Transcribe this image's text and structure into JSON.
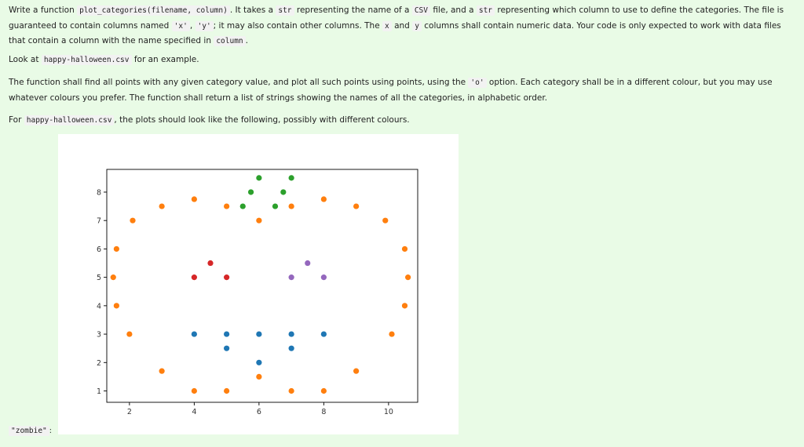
{
  "instructions": {
    "p1": {
      "t1": "Write a function ",
      "c1": "plot_categories(filename, column)",
      "t2": ". It takes a ",
      "c2": "str",
      "t3": " representing the name of a ",
      "c3": "CSV",
      "t4": " file, and a ",
      "c4": "str",
      "t5": " representing which column to use to define the categories. The file is guaranteed to contain columns named ",
      "c5": "'x'",
      "t6": ", ",
      "c6": "'y'",
      "t7": "; it may also contain other columns. The ",
      "c7": "x",
      "t8": " and ",
      "c8": "y",
      "t9": " columns shall contain numeric data. Your code is only expected to work with data files that contain a column with the name specified in ",
      "c9": "column",
      "t10": "."
    },
    "p2": {
      "t1": "Look at ",
      "c1": "happy-halloween.csv",
      "t2": " for an example."
    },
    "p3": {
      "t1": "The function shall find all points with any given category value, and plot all such points using points, using the ",
      "c1": "'o'",
      "t2": " option. Each category shall be in a different colour, but you may use whatever colours you prefer. The function shall return a list of strings showing the names of all the categories, in alphabetic order."
    },
    "p4": {
      "t1": "For ",
      "c1": "happy-halloween.csv",
      "t2": ", the plots should look like the following, possibly with different colours."
    }
  },
  "output_label": "\"zombie\"",
  "output_suffix": ":",
  "chart_data": {
    "type": "scatter",
    "xlim": [
      1.3,
      10.9
    ],
    "ylim": [
      0.6,
      8.8
    ],
    "xticks": [
      2,
      4,
      6,
      8,
      10
    ],
    "yticks": [
      1,
      2,
      3,
      4,
      5,
      6,
      7,
      8
    ],
    "grid": false,
    "series": [
      {
        "color": "#ff7f0e",
        "points": [
          [
            1.6,
            6
          ],
          [
            1.5,
            5
          ],
          [
            1.6,
            4
          ],
          [
            2,
            3
          ],
          [
            2.1,
            7
          ],
          [
            3,
            7.5
          ],
          [
            3,
            1.7
          ],
          [
            4,
            7.75
          ],
          [
            4,
            1
          ],
          [
            5,
            7.5
          ],
          [
            5,
            1
          ],
          [
            6,
            7
          ],
          [
            6,
            1.5
          ],
          [
            7,
            7.5
          ],
          [
            7,
            1
          ],
          [
            8,
            7.75
          ],
          [
            8,
            1
          ],
          [
            9,
            7.5
          ],
          [
            9,
            1.7
          ],
          [
            9.9,
            7
          ],
          [
            10.5,
            6
          ],
          [
            10.6,
            5
          ],
          [
            10.5,
            4
          ],
          [
            10.1,
            3
          ]
        ]
      },
      {
        "color": "#2ca02c",
        "points": [
          [
            5.5,
            7.5
          ],
          [
            5.75,
            8
          ],
          [
            6,
            8.5
          ],
          [
            6.5,
            7.5
          ],
          [
            6.75,
            8
          ],
          [
            7,
            8.5
          ]
        ]
      },
      {
        "color": "#d62728",
        "points": [
          [
            4,
            5
          ],
          [
            4.5,
            5.5
          ],
          [
            5,
            5
          ]
        ]
      },
      {
        "color": "#9467bd",
        "points": [
          [
            7,
            5
          ],
          [
            7.5,
            5.5
          ],
          [
            8,
            5
          ]
        ]
      },
      {
        "color": "#1f77b4",
        "points": [
          [
            4,
            3
          ],
          [
            5,
            3
          ],
          [
            5,
            2.5
          ],
          [
            6,
            3
          ],
          [
            6,
            2
          ],
          [
            7,
            3
          ],
          [
            7,
            2.5
          ],
          [
            8,
            3
          ]
        ]
      }
    ]
  }
}
